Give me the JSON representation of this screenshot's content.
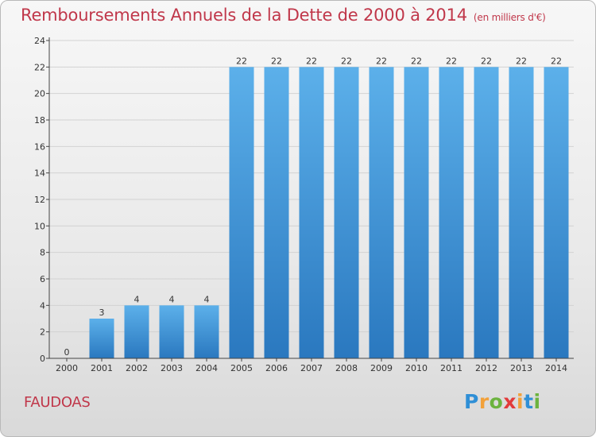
{
  "header": {
    "title": "Remboursements Annuels de la Dette de 2000 à 2014",
    "subtitle": "(en milliers d'€)"
  },
  "footer": {
    "town": "FAUDOAS",
    "logo_text": "Proxiti",
    "logo_colors": [
      "#2f8fd6",
      "#f2a13a",
      "#6cb33f",
      "#e23b3b",
      "#f2a13a",
      "#2f8fd6",
      "#6cb33f"
    ]
  },
  "chart_data": {
    "type": "bar",
    "title": "Remboursements Annuels de la Dette de 2000 à 2014",
    "subtitle": "(en milliers d'€)",
    "categories": [
      "2000",
      "2001",
      "2002",
      "2003",
      "2004",
      "2005",
      "2006",
      "2007",
      "2008",
      "2009",
      "2010",
      "2011",
      "2012",
      "2013",
      "2014"
    ],
    "values": [
      0,
      3,
      4,
      4,
      4,
      22,
      22,
      22,
      22,
      22,
      22,
      22,
      22,
      22,
      22
    ],
    "data_labels": [
      "0",
      "3",
      "4",
      "4",
      "4",
      "22",
      "22",
      "22",
      "22",
      "22",
      "22",
      "22",
      "22",
      "22",
      "22"
    ],
    "ylim": [
      0,
      24
    ],
    "yticks": [
      0,
      2,
      4,
      6,
      8,
      10,
      12,
      14,
      16,
      18,
      20,
      22,
      24
    ],
    "grid": true,
    "bar_color": "#3d8fd3"
  }
}
